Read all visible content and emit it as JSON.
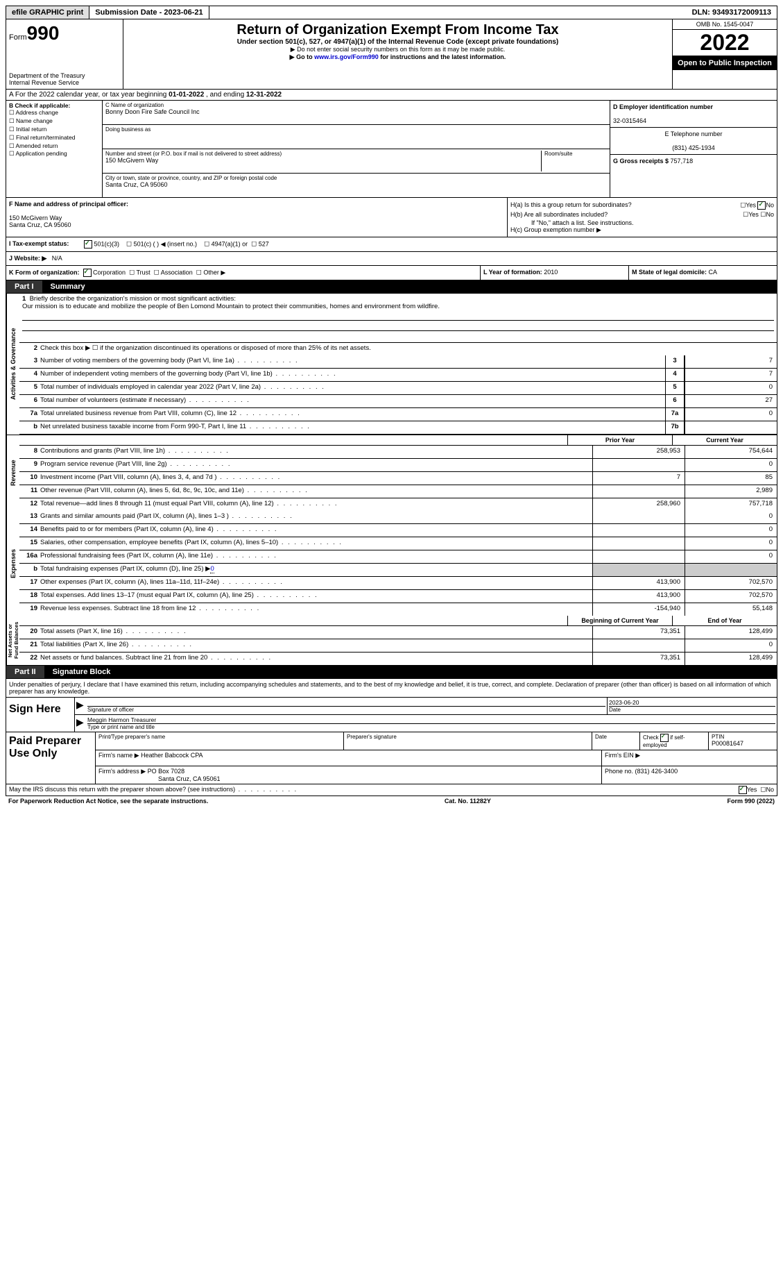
{
  "topbar": {
    "efile": "efile GRAPHIC print",
    "submission_label": "Submission Date - ",
    "submission_date": "2023-06-21",
    "dln_label": "DLN: ",
    "dln": "93493172009113"
  },
  "header": {
    "form_prefix": "Form",
    "form_number": "990",
    "title": "Return of Organization Exempt From Income Tax",
    "subtitle1": "Under section 501(c), 527, or 4947(a)(1) of the Internal Revenue Code (except private foundations)",
    "subtitle2": "▶ Do not enter social security numbers on this form as it may be made public.",
    "subtitle3_prefix": "▶ Go to ",
    "subtitle3_link": "www.irs.gov/Form990",
    "subtitle3_suffix": " for instructions and the latest information.",
    "dept": "Department of the Treasury\nInternal Revenue Service",
    "omb": "OMB No. 1545-0047",
    "year": "2022",
    "inspect": "Open to Public Inspection"
  },
  "row_a": {
    "prefix": "A For the 2022 calendar year, or tax year beginning ",
    "begin": "01-01-2022",
    "mid": ", and ending ",
    "end": "12-31-2022"
  },
  "col_b": {
    "label": "B Check if applicable:",
    "opts": [
      "Address change",
      "Name change",
      "Initial return",
      "Final return/terminated",
      "Amended return",
      "Application pending"
    ]
  },
  "col_c": {
    "name_label": "C Name of organization",
    "name": "Bonny Doon Fire Safe Council Inc",
    "dba_label": "Doing business as",
    "addr_label": "Number and street (or P.O. box if mail is not delivered to street address)",
    "room_label": "Room/suite",
    "addr": "150 McGivern Way",
    "city_label": "City or town, state or province, country, and ZIP or foreign postal code",
    "city": "Santa Cruz, CA  95060"
  },
  "col_d": {
    "ein_label": "D Employer identification number",
    "ein": "32-0315464",
    "phone_label": "E Telephone number",
    "phone": "(831) 425-1934",
    "gross_label": "G Gross receipts $ ",
    "gross": "757,718"
  },
  "col_f": {
    "label": "F Name and address of principal officer:",
    "addr1": "150 McGivern Way",
    "addr2": "Santa Cruz, CA  95060"
  },
  "col_h": {
    "ha_label": "H(a)  Is this a group return for subordinates?",
    "hb_label": "H(b)  Are all subordinates included?",
    "hb_note": "If \"No,\" attach a list. See instructions.",
    "hc_label": "H(c)  Group exemption number ▶"
  },
  "row_i": {
    "label": "I  Tax-exempt status:",
    "opt1": "501(c)(3)",
    "opt2": "501(c) (  ) ◀ (insert no.)",
    "opt3": "4947(a)(1) or",
    "opt4": "527"
  },
  "row_j": {
    "label": "J  Website: ▶",
    "value": "N/A"
  },
  "row_k": {
    "label": "K Form of organization:",
    "opts": [
      "Corporation",
      "Trust",
      "Association",
      "Other ▶"
    ],
    "l_label": "L Year of formation: ",
    "l_val": "2010",
    "m_label": "M State of legal domicile: ",
    "m_val": "CA"
  },
  "part1": {
    "num": "Part I",
    "title": "Summary"
  },
  "summary": {
    "line1_label": "Briefly describe the organization's mission or most significant activities:",
    "line1_text": "Our mission is to educate and mobilize the people of Ben Lomond Mountain to protect their communities, homes and environment from wildfire.",
    "line2": "Check this box ▶ ☐ if the organization discontinued its operations or disposed of more than 25% of its net assets.",
    "lines_ag": [
      {
        "n": "3",
        "d": "Number of voting members of the governing body (Part VI, line 1a)",
        "box": "3",
        "v": "7"
      },
      {
        "n": "4",
        "d": "Number of independent voting members of the governing body (Part VI, line 1b)",
        "box": "4",
        "v": "7"
      },
      {
        "n": "5",
        "d": "Total number of individuals employed in calendar year 2022 (Part V, line 2a)",
        "box": "5",
        "v": "0"
      },
      {
        "n": "6",
        "d": "Total number of volunteers (estimate if necessary)",
        "box": "6",
        "v": "27"
      },
      {
        "n": "7a",
        "d": "Total unrelated business revenue from Part VIII, column (C), line 12",
        "box": "7a",
        "v": "0"
      },
      {
        "n": "b",
        "d": "Net unrelated business taxable income from Form 990-T, Part I, line 11",
        "box": "7b",
        "v": ""
      }
    ],
    "prior_label": "Prior Year",
    "current_label": "Current Year",
    "rev_side": "Revenue",
    "rev_lines": [
      {
        "n": "8",
        "d": "Contributions and grants (Part VIII, line 1h)",
        "p": "258,953",
        "c": "754,644"
      },
      {
        "n": "9",
        "d": "Program service revenue (Part VIII, line 2g)",
        "p": "",
        "c": "0"
      },
      {
        "n": "10",
        "d": "Investment income (Part VIII, column (A), lines 3, 4, and 7d )",
        "p": "7",
        "c": "85"
      },
      {
        "n": "11",
        "d": "Other revenue (Part VIII, column (A), lines 5, 6d, 8c, 9c, 10c, and 11e)",
        "p": "",
        "c": "2,989"
      },
      {
        "n": "12",
        "d": "Total revenue—add lines 8 through 11 (must equal Part VIII, column (A), line 12)",
        "p": "258,960",
        "c": "757,718"
      }
    ],
    "exp_side": "Expenses",
    "exp_lines": [
      {
        "n": "13",
        "d": "Grants and similar amounts paid (Part IX, column (A), lines 1–3 )",
        "p": "",
        "c": "0"
      },
      {
        "n": "14",
        "d": "Benefits paid to or for members (Part IX, column (A), line 4)",
        "p": "",
        "c": "0"
      },
      {
        "n": "15",
        "d": "Salaries, other compensation, employee benefits (Part IX, column (A), lines 5–10)",
        "p": "",
        "c": "0"
      },
      {
        "n": "16a",
        "d": "Professional fundraising fees (Part IX, column (A), line 11e)",
        "p": "",
        "c": "0"
      }
    ],
    "line_b": {
      "n": "b",
      "d": "Total fundraising expenses (Part IX, column (D), line 25) ▶",
      "v": "0"
    },
    "exp_lines2": [
      {
        "n": "17",
        "d": "Other expenses (Part IX, column (A), lines 11a–11d, 11f–24e)",
        "p": "413,900",
        "c": "702,570"
      },
      {
        "n": "18",
        "d": "Total expenses. Add lines 13–17 (must equal Part IX, column (A), line 25)",
        "p": "413,900",
        "c": "702,570"
      },
      {
        "n": "19",
        "d": "Revenue less expenses. Subtract line 18 from line 12",
        "p": "-154,940",
        "c": "55,148"
      }
    ],
    "na_side": "Net Assets or\nFund Balances",
    "begin_label": "Beginning of Current Year",
    "end_label": "End of Year",
    "na_lines": [
      {
        "n": "20",
        "d": "Total assets (Part X, line 16)",
        "p": "73,351",
        "c": "128,499"
      },
      {
        "n": "21",
        "d": "Total liabilities (Part X, line 26)",
        "p": "",
        "c": "0"
      },
      {
        "n": "22",
        "d": "Net assets or fund balances. Subtract line 21 from line 20",
        "p": "73,351",
        "c": "128,499"
      }
    ],
    "ag_side": "Activities & Governance"
  },
  "part2": {
    "num": "Part II",
    "title": "Signature Block"
  },
  "sig": {
    "text": "Under penalties of perjury, I declare that I have examined this return, including accompanying schedules and statements, and to the best of my knowledge and belief, it is true, correct, and complete. Declaration of preparer (other than officer) is based on all information of which preparer has any knowledge.",
    "sign_here": "Sign Here",
    "sig_label": "Signature of officer",
    "date": "2023-06-20",
    "date_label": "Date",
    "name": "Meggin Harmon  Treasurer",
    "name_label": "Type or print name and title"
  },
  "prep": {
    "title": "Paid Preparer Use Only",
    "h1": "Print/Type preparer's name",
    "h2": "Preparer's signature",
    "h3": "Date",
    "h4_a": "Check",
    "h4_b": "if self-employed",
    "h5": "PTIN",
    "ptin": "P00081647",
    "firm_name_label": "Firm's name    ▶ ",
    "firm_name": "Heather Babcock CPA",
    "firm_ein_label": "Firm's EIN ▶",
    "firm_addr_label": "Firm's address ▶ ",
    "firm_addr1": "PO Box 7028",
    "firm_addr2": "Santa Cruz, CA  95061",
    "phone_label": "Phone no. ",
    "phone": "(831) 426-3400"
  },
  "footer": {
    "q": "May the IRS discuss this return with the preparer shown above? (see instructions)",
    "yes": "Yes",
    "no": "No",
    "paperwork": "For Paperwork Reduction Act Notice, see the separate instructions.",
    "cat": "Cat. No. 11282Y",
    "formlabel": "Form 990 (2022)"
  }
}
